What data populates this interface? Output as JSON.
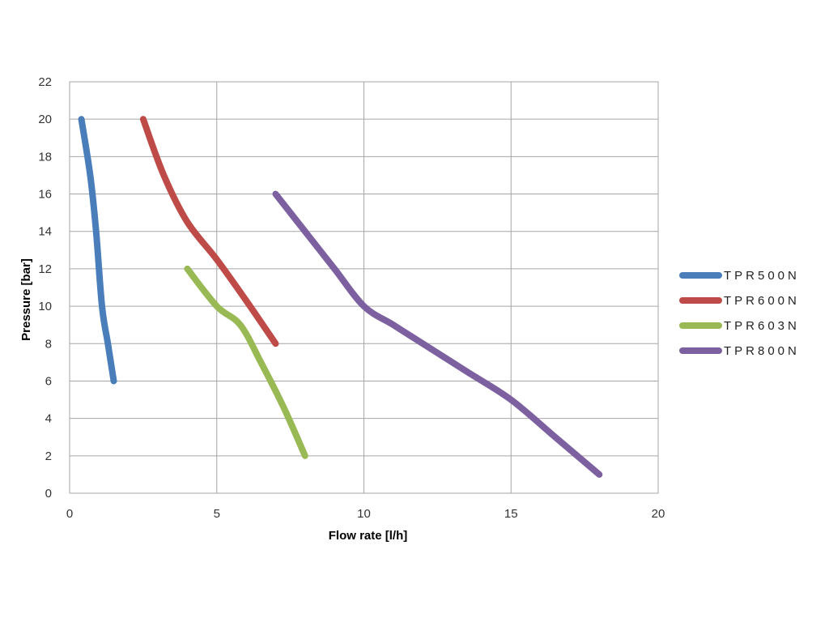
{
  "chart_data": {
    "type": "line",
    "title": "",
    "xlabel": "Flow rate [l/h]",
    "ylabel": "Pressure [bar]",
    "xlim": [
      0,
      20
    ],
    "ylim": [
      0,
      22
    ],
    "xticks": [
      0,
      5,
      10,
      15,
      20
    ],
    "yticks": [
      0,
      2,
      4,
      6,
      8,
      10,
      12,
      14,
      16,
      18,
      20,
      22
    ],
    "grid": true,
    "legend_position": "right",
    "series": [
      {
        "name": "TPR500N",
        "color": "#4a7ebb",
        "points": [
          [
            0.4,
            20
          ],
          [
            0.7,
            17
          ],
          [
            0.9,
            14
          ],
          [
            1.1,
            10
          ],
          [
            1.3,
            8
          ],
          [
            1.5,
            6
          ]
        ]
      },
      {
        "name": "TPR600N",
        "color": "#be4b48",
        "points": [
          [
            2.5,
            20
          ],
          [
            3.2,
            17
          ],
          [
            4.0,
            14.5
          ],
          [
            5.0,
            12.5
          ],
          [
            6.0,
            10.3
          ],
          [
            7.0,
            8
          ]
        ]
      },
      {
        "name": "TPR603N",
        "color": "#98b954",
        "points": [
          [
            4.0,
            12
          ],
          [
            5.0,
            10
          ],
          [
            5.8,
            9
          ],
          [
            6.5,
            7
          ],
          [
            7.3,
            4.5
          ],
          [
            8.0,
            2
          ]
        ]
      },
      {
        "name": "TPR800N",
        "color": "#7d60a0",
        "points": [
          [
            7.0,
            16
          ],
          [
            8.0,
            14
          ],
          [
            9.0,
            12
          ],
          [
            10.0,
            10
          ],
          [
            11.0,
            9
          ],
          [
            12.0,
            8
          ],
          [
            13.5,
            6.5
          ],
          [
            15.0,
            5
          ],
          [
            16.5,
            3
          ],
          [
            18.0,
            1
          ]
        ]
      }
    ]
  }
}
